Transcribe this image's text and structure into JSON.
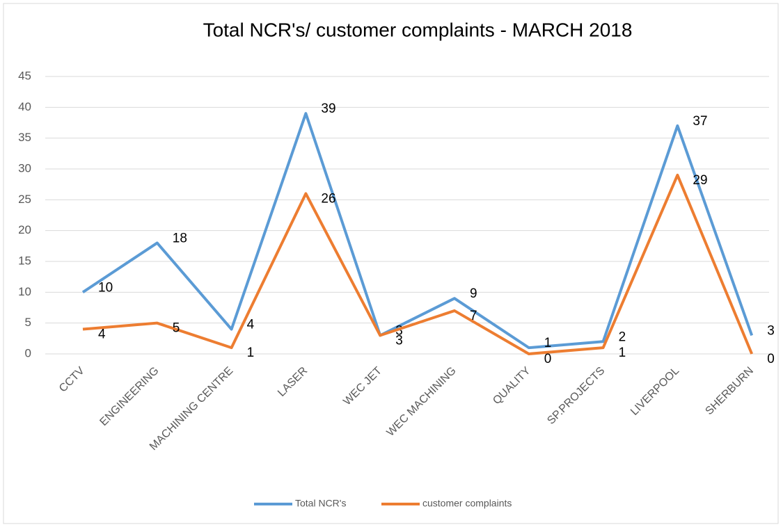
{
  "chart_data": {
    "type": "line",
    "title": "Total NCR's/ customer complaints - MARCH 2018",
    "categories": [
      "CCTV",
      "ENGINEERING",
      "MACHINING CENTRE",
      "LASER",
      "WEC JET",
      "WEC MACHINING",
      "QUALITY",
      "SP.PROJECTS",
      "LIVERPOOL",
      "SHERBURN"
    ],
    "series": [
      {
        "name": "Total NCR's",
        "color": "#5b9bd5",
        "values": [
          10,
          18,
          4,
          39,
          3,
          9,
          1,
          2,
          37,
          3
        ]
      },
      {
        "name": "customer complaints",
        "color": "#ed7d31",
        "values": [
          4,
          5,
          1,
          26,
          3,
          7,
          0,
          1,
          29,
          0
        ]
      }
    ],
    "ylim": [
      0,
      45
    ],
    "yticks": [
      0,
      5,
      10,
      15,
      20,
      25,
      30,
      35,
      40,
      45
    ],
    "grid": true,
    "legend": "bottom"
  }
}
